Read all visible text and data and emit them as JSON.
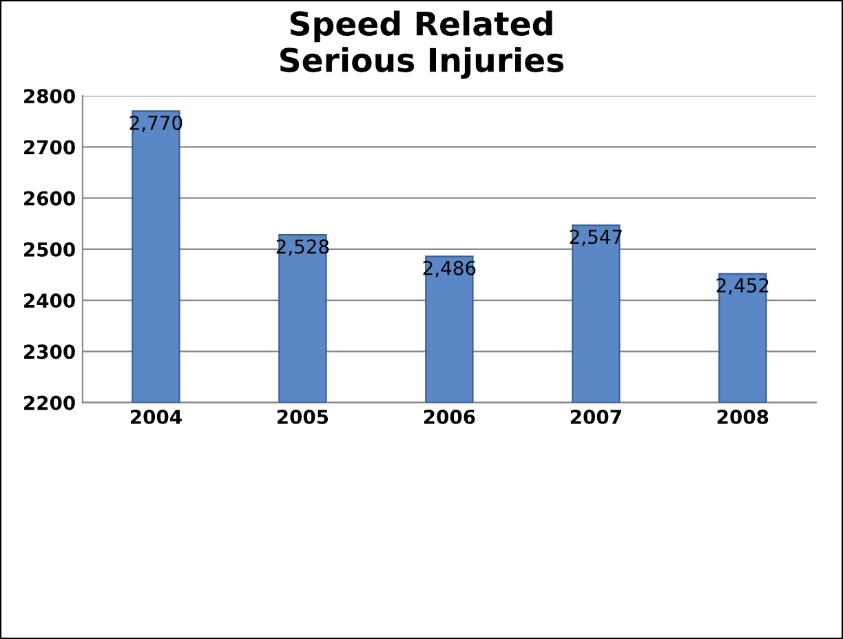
{
  "chart_data": {
    "type": "bar",
    "title": "Speed Related\nSerious Injuries",
    "categories": [
      "2004",
      "2005",
      "2006",
      "2007",
      "2008"
    ],
    "values": [
      2770,
      2528,
      2486,
      2547,
      2452
    ],
    "value_labels": [
      "2,770",
      "2,528",
      "2,486",
      "2,547",
      "2,452"
    ],
    "color": "#5b87c6",
    "ylim": [
      2200,
      2800
    ],
    "yticks": [
      2200,
      2300,
      2400,
      2500,
      2600,
      2700,
      2800
    ],
    "grid": "y",
    "legend": false
  }
}
